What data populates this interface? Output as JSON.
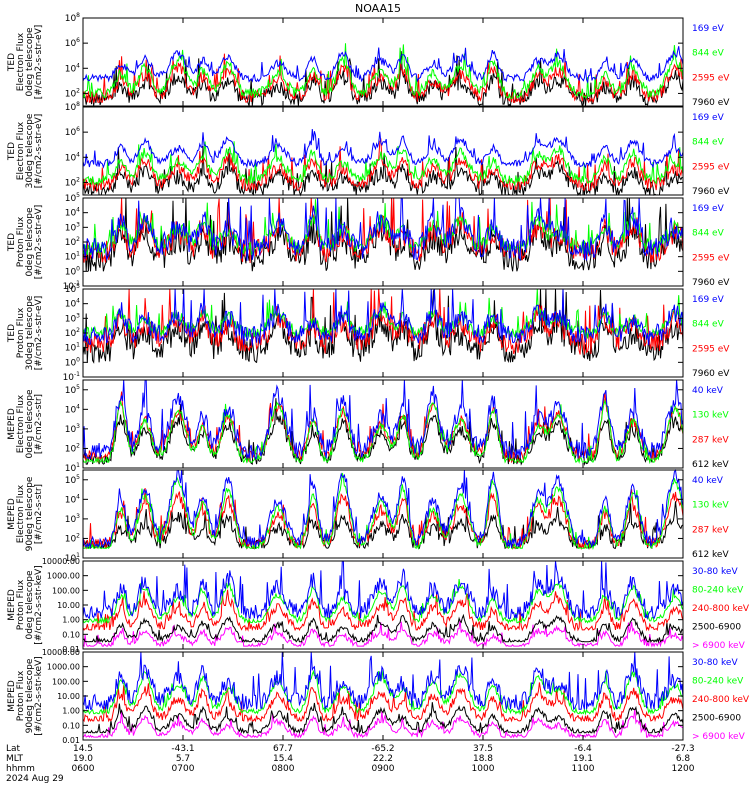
{
  "figure": {
    "title": "NOAA15",
    "date_label": "2024 Aug 29"
  },
  "ephemeris": {
    "row_labels": [
      "Lat",
      "MLT",
      "hhmm"
    ],
    "ticks": [
      {
        "lat": "14.5",
        "mlt": "19.0",
        "hhmm": "0600"
      },
      {
        "lat": "-43.1",
        "mlt": "5.7",
        "hhmm": "0700"
      },
      {
        "lat": "67.7",
        "mlt": "15.4",
        "hhmm": "0800"
      },
      {
        "lat": "-65.2",
        "mlt": "22.2",
        "hhmm": "0900"
      },
      {
        "lat": "37.5",
        "mlt": "18.8",
        "hhmm": "1000"
      },
      {
        "lat": "-6.4",
        "mlt": "19.1",
        "hhmm": "1100"
      },
      {
        "lat": "-27.3",
        "mlt": "6.8",
        "hhmm": "1200"
      }
    ]
  },
  "colors": {
    "blue": "#0000ff",
    "red": "#ff0000",
    "green": "#00ff00",
    "black": "#000000",
    "magenta": "#ff00ff",
    "axis": "#000000"
  },
  "chart_data": [
    {
      "type": "line",
      "scale": "log",
      "ylabel": [
        "TED",
        "Electron Flux",
        "0deg telescope",
        "[#/cm2-s-str-eV]"
      ],
      "ytick_exponents": [
        2,
        4,
        6,
        8
      ],
      "ylim_exp": [
        1,
        8
      ],
      "tick_style": "exp",
      "series": [
        {
          "name": "7960 eV",
          "color": "black",
          "base": 1.5,
          "hump": 1.8,
          "noise": 0.6,
          "floor": 1.0
        },
        {
          "name": "2595 eV",
          "color": "red",
          "base": 1.7,
          "hump": 2.3,
          "noise": 0.5,
          "floor": 1.3
        },
        {
          "name": "844 eV",
          "color": "green",
          "base": 2.0,
          "hump": 2.6,
          "noise": 0.4,
          "floor": 1.5
        },
        {
          "name": "169 eV",
          "color": "blue",
          "base": 3.2,
          "hump": 2.0,
          "noise": 0.3,
          "floor": 2.5
        }
      ]
    },
    {
      "type": "line",
      "scale": "log",
      "ylabel": [
        "TED",
        "Electron Flux",
        "30deg telescope",
        "[#/cm2-s-str-eV]"
      ],
      "ytick_exponents": [
        2,
        4,
        6,
        8
      ],
      "ylim_exp": [
        1,
        8
      ],
      "tick_style": "exp",
      "series": [
        {
          "name": "7960 eV",
          "color": "black",
          "base": 1.4,
          "hump": 1.7,
          "noise": 0.6,
          "floor": 1.0
        },
        {
          "name": "2595 eV",
          "color": "red",
          "base": 1.8,
          "hump": 2.1,
          "noise": 0.5,
          "floor": 1.2
        },
        {
          "name": "844 eV",
          "color": "green",
          "base": 2.2,
          "hump": 2.4,
          "noise": 0.4,
          "floor": 1.5
        },
        {
          "name": "169 eV",
          "color": "blue",
          "base": 3.5,
          "hump": 2.0,
          "noise": 0.3,
          "floor": 2.8
        }
      ]
    },
    {
      "type": "line",
      "scale": "log",
      "ylabel": [
        "TED",
        "Proton Flux",
        "0deg telescope",
        "[#/cm2-s-str-eV]"
      ],
      "ytick_exponents": [
        -1,
        0,
        1,
        2,
        3,
        4,
        5
      ],
      "ylim_exp": [
        -1,
        5
      ],
      "tick_style": "exp",
      "series": [
        {
          "name": "7960 eV",
          "color": "black",
          "base": 0.8,
          "hump": 2.0,
          "noise": 0.9,
          "floor": 0.0
        },
        {
          "name": "2595 eV",
          "color": "red",
          "base": 1.3,
          "hump": 2.0,
          "noise": 0.8,
          "floor": 0.2
        },
        {
          "name": "844 eV",
          "color": "green",
          "base": 1.6,
          "hump": 2.0,
          "noise": 0.5,
          "floor": 0.5
        },
        {
          "name": "169 eV",
          "color": "blue",
          "base": 1.5,
          "hump": 2.2,
          "noise": 0.8,
          "floor": 0.3
        }
      ]
    },
    {
      "type": "line",
      "scale": "log",
      "ylabel": [
        "TED",
        "Proton Flux",
        "30deg telescope",
        "[#/cm2-s-str-eV]"
      ],
      "ytick_exponents": [
        -1,
        0,
        1,
        2,
        3,
        4,
        5
      ],
      "ylim_exp": [
        -1,
        5
      ],
      "tick_style": "exp",
      "series": [
        {
          "name": "7960 eV",
          "color": "black",
          "base": 0.8,
          "hump": 2.0,
          "noise": 0.9,
          "floor": 0.0
        },
        {
          "name": "2595 eV",
          "color": "red",
          "base": 1.3,
          "hump": 2.0,
          "noise": 0.8,
          "floor": 0.2
        },
        {
          "name": "844 eV",
          "color": "green",
          "base": 2.0,
          "hump": 1.5,
          "noise": 0.4,
          "floor": 0.8
        },
        {
          "name": "169 eV",
          "color": "blue",
          "base": 1.8,
          "hump": 1.8,
          "noise": 0.7,
          "floor": 0.5
        }
      ]
    },
    {
      "type": "line",
      "scale": "log",
      "ylabel": [
        "MEPED",
        "Electron Flux",
        "0deg telescope",
        "[#/cm2-s-str]"
      ],
      "ytick_exponents": [
        1,
        2,
        3,
        4,
        5
      ],
      "ylim_exp": [
        1,
        5.5
      ],
      "tick_style": "exp",
      "series": [
        {
          "name": "612 keV",
          "color": "black",
          "base": 1.4,
          "hump": 2.2,
          "noise": 0.3,
          "floor": 1.2
        },
        {
          "name": "287 keV",
          "color": "red",
          "base": 1.6,
          "hump": 2.6,
          "noise": 0.3,
          "floor": 1.3
        },
        {
          "name": "130 keV",
          "color": "green",
          "base": 1.3,
          "hump": 3.0,
          "noise": 0.2,
          "floor": 1.3
        },
        {
          "name": "40 keV",
          "color": "blue",
          "base": 1.8,
          "hump": 3.0,
          "noise": 0.5,
          "floor": 1.5
        }
      ]
    },
    {
      "type": "line",
      "scale": "log",
      "ylabel": [
        "MEPED",
        "Electron Flux",
        "90deg telescope",
        "[#/cm2-s-str]"
      ],
      "ytick_exponents": [
        1,
        2,
        3,
        4,
        5
      ],
      "ylim_exp": [
        1,
        5.5
      ],
      "tick_style": "exp",
      "series": [
        {
          "name": "612 keV",
          "color": "black",
          "base": 1.6,
          "hump": 1.5,
          "noise": 0.3,
          "floor": 1.5
        },
        {
          "name": "287 keV",
          "color": "red",
          "base": 1.7,
          "hump": 2.5,
          "noise": 0.3,
          "floor": 1.5
        },
        {
          "name": "130 keV",
          "color": "green",
          "base": 1.5,
          "hump": 3.4,
          "noise": 0.2,
          "floor": 1.5
        },
        {
          "name": "40 keV",
          "color": "blue",
          "base": 1.8,
          "hump": 3.5,
          "noise": 0.3,
          "floor": 1.5
        }
      ]
    },
    {
      "type": "line",
      "scale": "log",
      "ylabel": [
        "MEPED",
        "Proton Flux",
        "0deg telescope",
        "[#/cm2-s-str-keV]"
      ],
      "ytick_labels": [
        "0.01",
        "0.10",
        "1.00",
        "10.00",
        "100.00",
        "1000.00",
        "10000.00"
      ],
      "ytick_exponents": [
        -2,
        -1,
        0,
        1,
        2,
        3,
        4
      ],
      "ylim_exp": [
        -2,
        4
      ],
      "tick_style": "decimal",
      "series": [
        {
          "name": "> 6900 keV",
          "color": "magenta",
          "base": -1.8,
          "hump": 1.2,
          "noise": 0.2,
          "floor": -1.8
        },
        {
          "name": "2500-6900",
          "color": "black",
          "base": -1.5,
          "hump": 1.6,
          "noise": 0.2,
          "floor": -1.5
        },
        {
          "name": "240-800 keV",
          "color": "red",
          "base": -0.6,
          "hump": 2.0,
          "noise": 0.3,
          "floor": -0.7
        },
        {
          "name": "80-240 keV",
          "color": "green",
          "base": -0.1,
          "hump": 2.5,
          "noise": 0.2,
          "floor": -0.2
        },
        {
          "name": "30-80 keV",
          "color": "blue",
          "base": 0.4,
          "hump": 2.5,
          "noise": 0.6,
          "floor": 0.1
        }
      ]
    },
    {
      "type": "line",
      "scale": "log",
      "ylabel": [
        "MEPED",
        "Proton Flux",
        "90deg telescope",
        "[#/cm2-s-str-keV]"
      ],
      "ytick_labels": [
        "0.01",
        "0.10",
        "1.00",
        "10.00",
        "100.00",
        "1000.00",
        "10000.00"
      ],
      "ytick_exponents": [
        -2,
        -1,
        0,
        1,
        2,
        3,
        4
      ],
      "ylim_exp": [
        -2,
        4
      ],
      "tick_style": "decimal",
      "series": [
        {
          "name": "> 6900 keV",
          "color": "magenta",
          "base": -1.8,
          "hump": 1.3,
          "noise": 0.2,
          "floor": -1.8
        },
        {
          "name": "2500-6900",
          "color": "black",
          "base": -1.5,
          "hump": 1.7,
          "noise": 0.2,
          "floor": -1.5
        },
        {
          "name": "240-800 keV",
          "color": "red",
          "base": -0.6,
          "hump": 2.0,
          "noise": 0.3,
          "floor": -0.7
        },
        {
          "name": "80-240 keV",
          "color": "green",
          "base": -0.1,
          "hump": 2.6,
          "noise": 0.2,
          "floor": -0.2
        },
        {
          "name": "30-80 keV",
          "color": "blue",
          "base": 0.5,
          "hump": 2.3,
          "noise": 0.6,
          "floor": 0.1
        }
      ]
    }
  ],
  "time_axis": {
    "start_hour": 6.0,
    "end_hour": 12.0,
    "tick_hours": [
      6,
      7,
      8,
      9,
      10,
      11,
      12
    ]
  }
}
